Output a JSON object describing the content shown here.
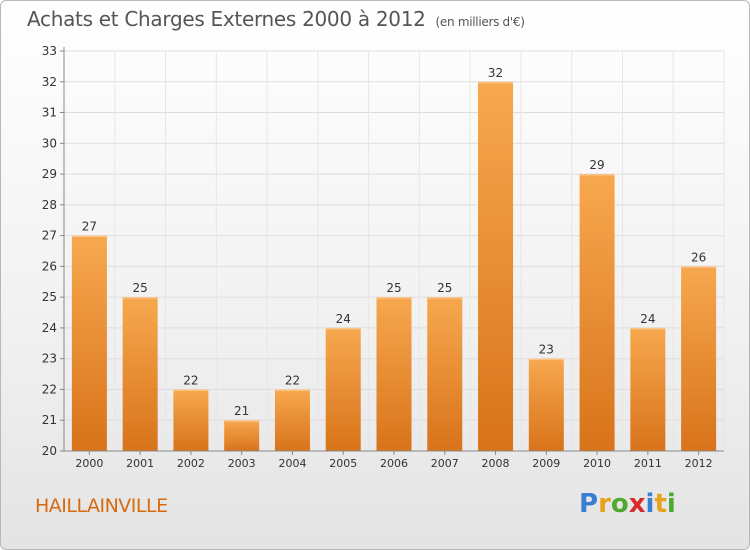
{
  "header": {
    "title": "Achats et Charges Externes 2000 à 2012",
    "subtitle": "(en milliers d'€)"
  },
  "footer": {
    "place": "HAILLAINVILLE",
    "brand_letters": [
      "P",
      "r",
      "o",
      "x",
      "i",
      "t",
      "i"
    ],
    "brand_colors": [
      "#3a7fd5",
      "#e8a21b",
      "#4ea832",
      "#d92a2a",
      "#3a7fd5",
      "#e8a21b",
      "#4ea832"
    ]
  },
  "chart_data": {
    "type": "bar",
    "categories": [
      "2000",
      "2001",
      "2002",
      "2003",
      "2004",
      "2005",
      "2006",
      "2007",
      "2008",
      "2009",
      "2010",
      "2011",
      "2012"
    ],
    "values": [
      27,
      25,
      22,
      21,
      22,
      24,
      25,
      25,
      32,
      23,
      29,
      24,
      26
    ],
    "data_labels": [
      "27",
      "25",
      "22",
      "21",
      "22",
      "24",
      "25",
      "25",
      "32",
      "23",
      "29",
      "24",
      "26"
    ],
    "yticks": [
      "20",
      "21",
      "22",
      "23",
      "24",
      "25",
      "26",
      "27",
      "28",
      "29",
      "30",
      "31",
      "32",
      "33"
    ],
    "ylim": [
      20,
      33
    ],
    "grid": true,
    "bar_color_top": "#f7a84f",
    "bar_color_bottom": "#d8731a",
    "text_color": "#333333"
  }
}
